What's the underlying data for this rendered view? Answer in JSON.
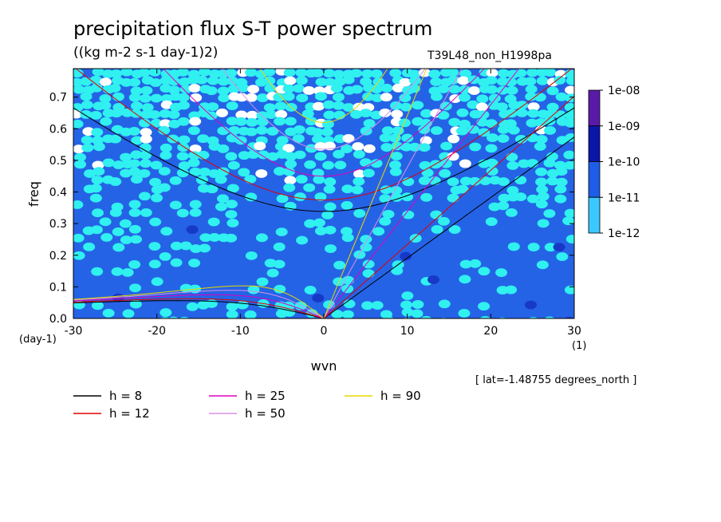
{
  "chart_data": {
    "type": "heatmap",
    "title": "precipitation flux S-T power spectrum",
    "units": "((kg m-2 s-1 day-1)2)",
    "run_id": "T39L48_non_H1998pa",
    "xlabel": "wvn",
    "ylabel": "freq",
    "x_unit": "(1)",
    "y_unit": "(day-1)",
    "xlim": [
      -30,
      30
    ],
    "ylim": [
      0,
      0.79
    ],
    "x_ticks": [
      "-30",
      "-20",
      "-10",
      "0",
      "10",
      "20",
      "30"
    ],
    "x_tick_values": [
      -30,
      -20,
      -10,
      0,
      10,
      20,
      30
    ],
    "y_ticks": [
      "0.0",
      "0.1",
      "0.2",
      "0.3",
      "0.4",
      "0.5",
      "0.6",
      "0.7"
    ],
    "y_tick_values": [
      0,
      0.1,
      0.2,
      0.3,
      0.4,
      0.5,
      0.6,
      0.7
    ],
    "colorbar": {
      "labels": [
        "1e-08",
        "1e-09",
        "1e-10",
        "1e-11",
        "1e-12"
      ],
      "colors": [
        "#5a1aa8",
        "#0b16a8",
        "#1e5de8",
        "#3bc8ff"
      ]
    },
    "heat_colors": {
      "background": "#2563e6",
      "light": "#30f0f0",
      "white": "#ffffff",
      "dark": "#1739c8"
    },
    "dispersion_curves": [
      {
        "name": "h =  8",
        "h": 8,
        "color": "#000000"
      },
      {
        "name": "h = 12",
        "h": 12,
        "color": "#e00000"
      },
      {
        "name": "h = 25",
        "h": 25,
        "color": "#e000c0"
      },
      {
        "name": "h = 50",
        "h": 50,
        "color": "#d890e8"
      },
      {
        "name": "h = 90",
        "h": 90,
        "color": "#e8d800"
      }
    ],
    "annotation": "[ lat=-1.48755 degrees_north ]"
  }
}
